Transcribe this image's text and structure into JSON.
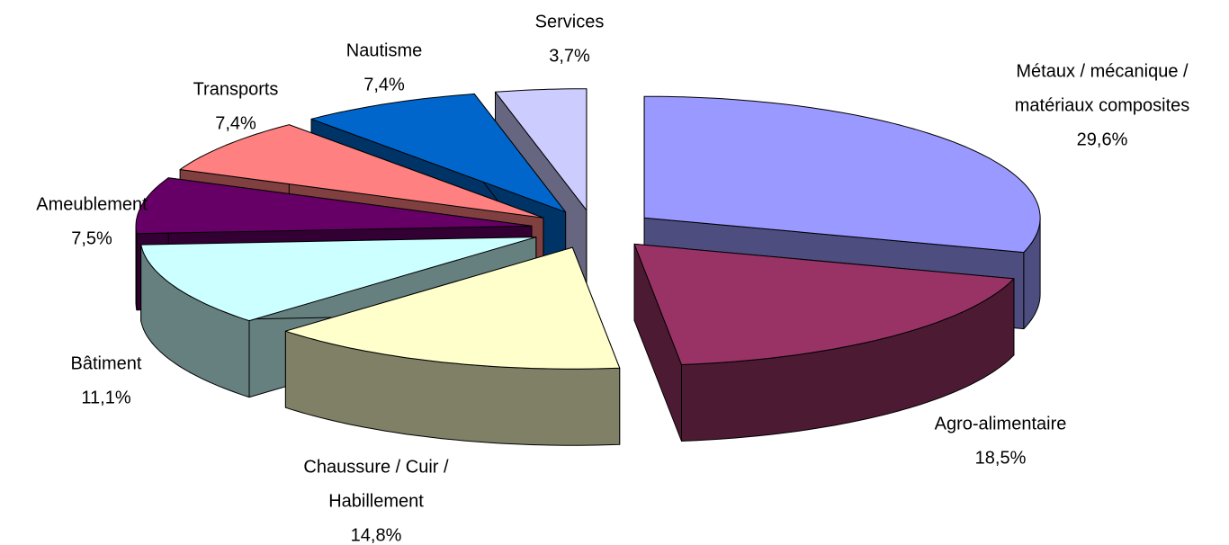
{
  "chart_data": {
    "type": "pie3d",
    "categories": [
      [
        "Métaux / mécanique /",
        "matériaux composites"
      ],
      [
        "Agro-alimentaire"
      ],
      [
        "Chaussure / Cuir /",
        "Habillement"
      ],
      [
        "Bâtiment"
      ],
      [
        "Ameublement"
      ],
      [
        "Transports"
      ],
      [
        "Nautisme"
      ],
      [
        "Services"
      ]
    ],
    "values": [
      29.6,
      18.5,
      14.8,
      11.1,
      7.5,
      7.4,
      7.4,
      3.7
    ],
    "value_labels": [
      "29,6%",
      "18,5%",
      "14,8%",
      "11,1%",
      "7,5%",
      "7,4%",
      "7,4%",
      "3,7%"
    ],
    "colors": [
      "#9999ff",
      "#993366",
      "#ffffcc",
      "#ccffff",
      "#660066",
      "#ff8080",
      "#0066cc",
      "#ccccff"
    ]
  }
}
